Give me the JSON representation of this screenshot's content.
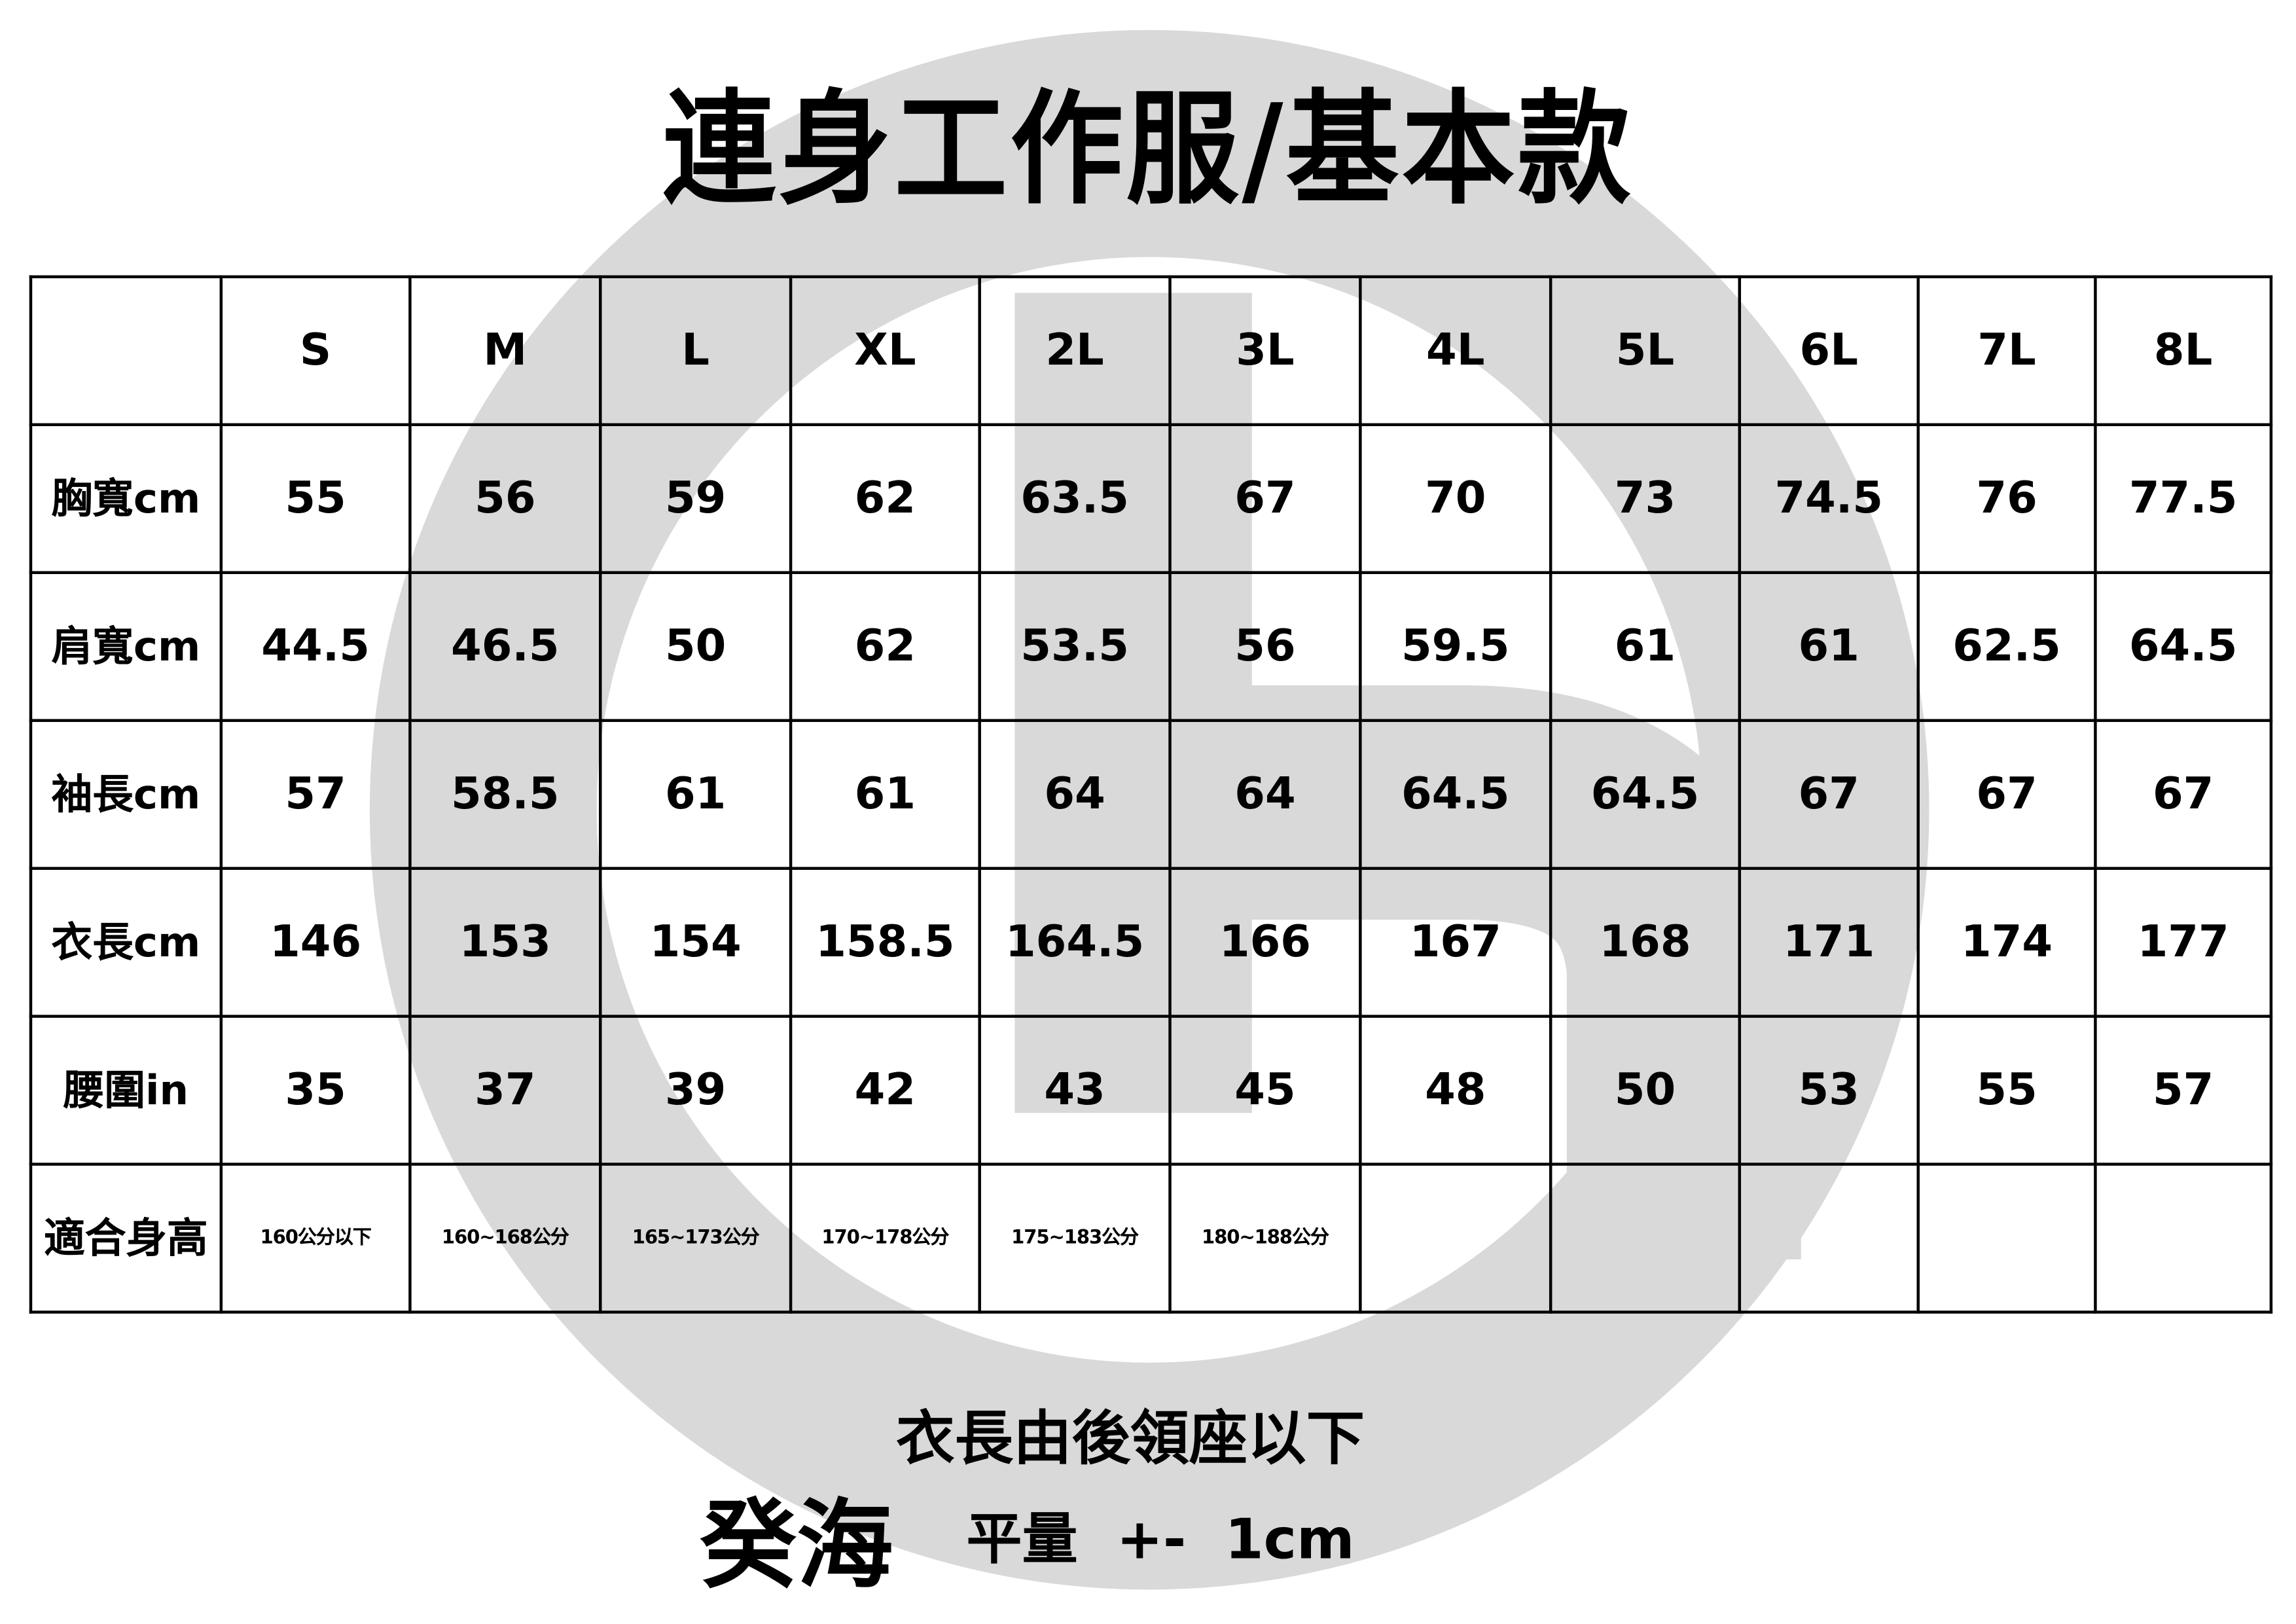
{
  "title": "連身工作服/基本款",
  "table": {
    "headers": [
      "",
      "S",
      "M",
      "L",
      "XL",
      "2L",
      "3L",
      "4L",
      "5L",
      "6L",
      "7L",
      "8L"
    ],
    "rows": [
      {
        "label": "胸寬cm",
        "values": [
          "55",
          "56",
          "59",
          "62",
          "63.5",
          "67",
          "70",
          "73",
          "74.5",
          "76",
          "77.5"
        ]
      },
      {
        "label": "肩寬cm",
        "values": [
          "44.5",
          "46.5",
          "50",
          "62",
          "53.5",
          "56",
          "59.5",
          "61",
          "61",
          "62.5",
          "64.5"
        ]
      },
      {
        "label": "袖長cm",
        "values": [
          "57",
          "58.5",
          "61",
          "61",
          "64",
          "64",
          "64.5",
          "64.5",
          "67",
          "67",
          "67"
        ]
      },
      {
        "label": "衣長cm",
        "values": [
          "146",
          "153",
          "154",
          "158.5",
          "164.5",
          "166",
          "167",
          "168",
          "171",
          "174",
          "177"
        ]
      },
      {
        "label": "腰圍in",
        "values": [
          "35",
          "37",
          "39",
          "42",
          "43",
          "45",
          "48",
          "50",
          "53",
          "55",
          "57"
        ]
      },
      {
        "label": "適合身高",
        "values": [
          "160公分以下",
          "160~168公分",
          "165~173公分",
          "170~178公分",
          "175~183公分",
          "180~188公分",
          "",
          "",
          "",
          "",
          ""
        ]
      }
    ]
  },
  "footer": {
    "note": "衣長由後領座以下",
    "brand": "癸海",
    "measure": "平量  +-  1cm"
  },
  "colors": {
    "watermark": "#d9d9d9",
    "text": "#000000"
  },
  "watermark_icon": "circle-b-logo"
}
